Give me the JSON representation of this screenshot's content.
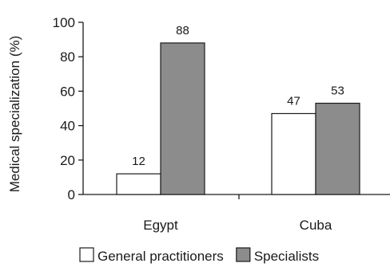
{
  "chart_data": {
    "type": "bar",
    "ylabel": "Medical specialization (%)",
    "xlabel": "",
    "ylim": [
      0,
      100
    ],
    "yticks": [
      0,
      20,
      40,
      60,
      80,
      100
    ],
    "categories": [
      "Egypt",
      "Cuba"
    ],
    "series": [
      {
        "name": "General practitioners",
        "values": [
          12,
          47
        ],
        "color": "#ffffff"
      },
      {
        "name": "Specialists",
        "values": [
          88,
          53
        ],
        "color": "#8c8c8c"
      }
    ],
    "data_labels": true,
    "grid": false,
    "legend_position": "bottom"
  }
}
